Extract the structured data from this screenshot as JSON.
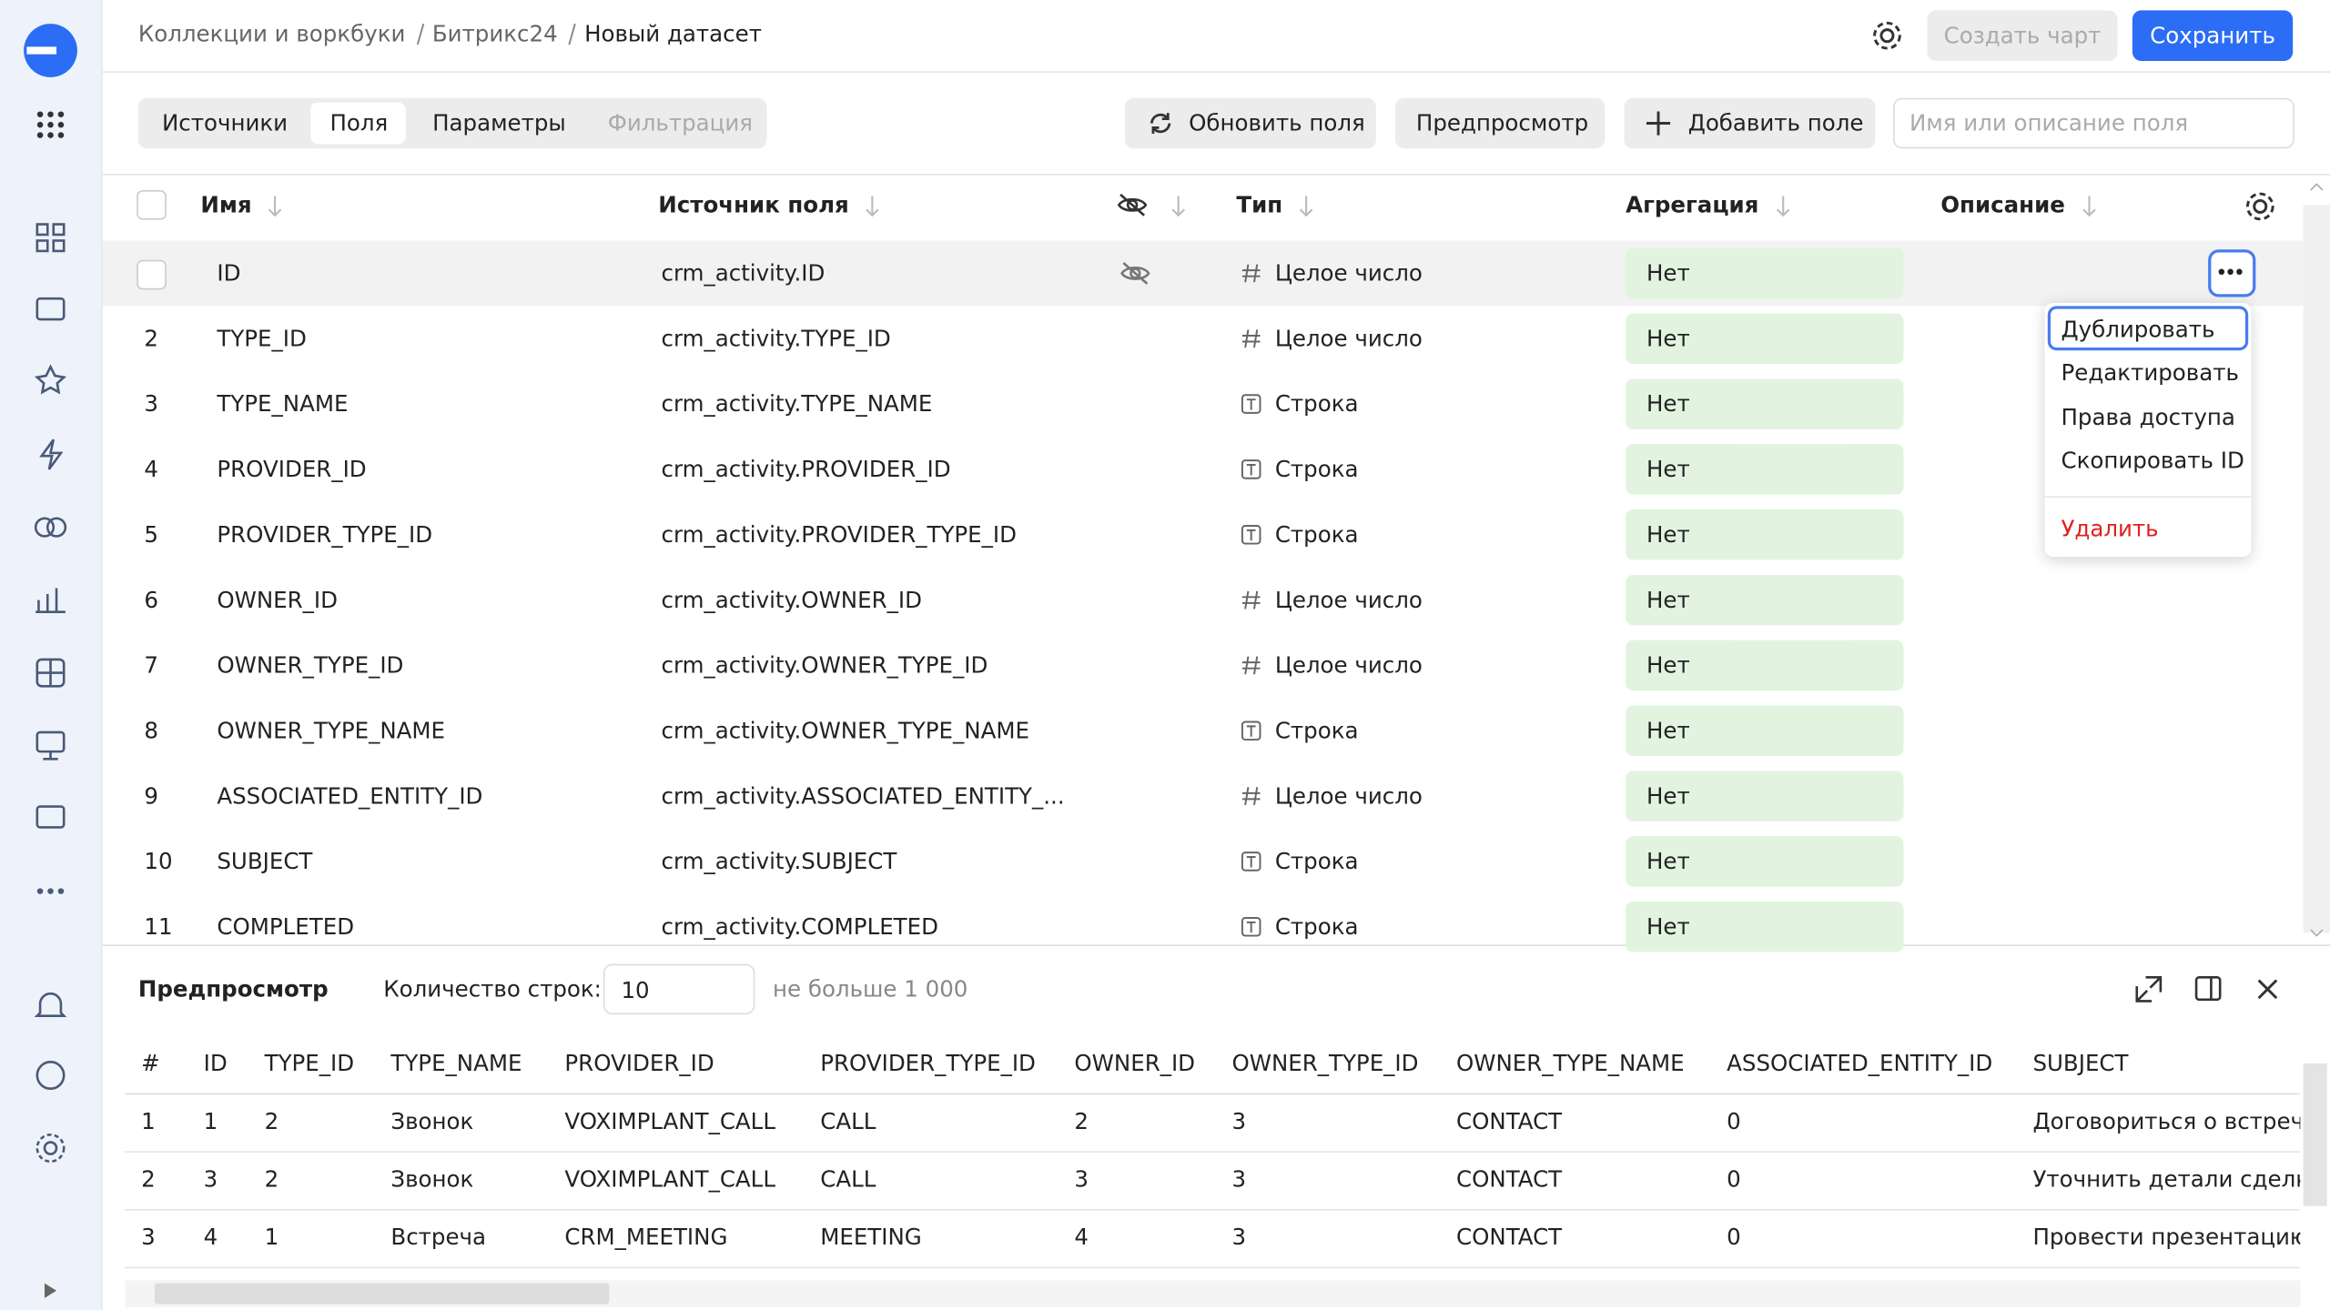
{
  "breadcrumbs": [
    "Коллекции и воркбуки",
    "Битрикс24",
    "Новый датасет"
  ],
  "header_buttons": {
    "create_chart": "Создать чарт",
    "save": "Сохранить"
  },
  "tabs": [
    "Источники",
    "Поля",
    "Параметры",
    "Фильтрация"
  ],
  "toolbar": {
    "refresh": "Обновить поля",
    "preview": "Предпросмотр",
    "add_field": "Добавить поле",
    "search_placeholder": "Имя или описание поля"
  },
  "fields_table": {
    "columns": [
      "Имя",
      "Источник поля",
      "Тип",
      "Агрегация",
      "Описание"
    ],
    "rows": [
      {
        "name": "ID",
        "source": "crm_activity.ID",
        "type": "Целое число",
        "aggregation": "Нет"
      },
      {
        "number": "2",
        "name": "TYPE_ID",
        "source": "crm_activity.TYPE_ID",
        "type": "Целое число",
        "aggregation": "Нет"
      },
      {
        "number": "3",
        "name": "TYPE_NAME",
        "source": "crm_activity.TYPE_NAME",
        "type": "Строка",
        "aggregation": "Нет"
      },
      {
        "number": "4",
        "name": "PROVIDER_ID",
        "source": "crm_activity.PROVIDER_ID",
        "type": "Строка",
        "aggregation": "Нет"
      },
      {
        "number": "5",
        "name": "PROVIDER_TYPE_ID",
        "source": "crm_activity.PROVIDER_TYPE_ID",
        "type": "Строка",
        "aggregation": "Нет"
      },
      {
        "number": "6",
        "name": "OWNER_ID",
        "source": "crm_activity.OWNER_ID",
        "type": "Целое число",
        "aggregation": "Нет"
      },
      {
        "number": "7",
        "name": "OWNER_TYPE_ID",
        "source": "crm_activity.OWNER_TYPE_ID",
        "type": "Целое число",
        "aggregation": "Нет"
      },
      {
        "number": "8",
        "name": "OWNER_TYPE_NAME",
        "source": "crm_activity.OWNER_TYPE_NAME",
        "type": "Строка",
        "aggregation": "Нет"
      },
      {
        "number": "9",
        "name": "ASSOCIATED_ENTITY_ID",
        "source": "crm_activity.ASSOCIATED_ENTITY_...",
        "type": "Целое число",
        "aggregation": "Нет"
      },
      {
        "number": "10",
        "name": "SUBJECT",
        "source": "crm_activity.SUBJECT",
        "type": "Строка",
        "aggregation": "Нет"
      },
      {
        "number": "11",
        "name": "COMPLETED",
        "source": "crm_activity.COMPLETED",
        "type": "Строка",
        "aggregation": "Нет"
      }
    ]
  },
  "context_menu": [
    "Дублировать",
    "Редактировать",
    "Права доступа",
    "Скопировать ID",
    "Удалить"
  ],
  "preview": {
    "title": "Предпросмотр",
    "rows_label": "Количество строк:",
    "rows_value": "10",
    "rows_hint": "не больше 1 000",
    "columns": [
      "#",
      "ID",
      "TYPE_ID",
      "TYPE_NAME",
      "PROVIDER_ID",
      "PROVIDER_TYPE_ID",
      "OWNER_ID",
      "OWNER_TYPE_ID",
      "OWNER_TYPE_NAME",
      "ASSOCIATED_ENTITY_ID",
      "SUBJECT"
    ],
    "rows": [
      [
        "1",
        "1",
        "2",
        "Звонок",
        "VOXIMPLANT_CALL",
        "CALL",
        "2",
        "3",
        "CONTACT",
        "0",
        "Договориться о встрече"
      ],
      [
        "2",
        "3",
        "2",
        "Звонок",
        "VOXIMPLANT_CALL",
        "CALL",
        "3",
        "3",
        "CONTACT",
        "0",
        "Уточнить детали сделки"
      ],
      [
        "3",
        "4",
        "1",
        "Встреча",
        "CRM_MEETING",
        "MEETING",
        "4",
        "3",
        "CONTACT",
        "0",
        "Провести презентацию"
      ]
    ]
  }
}
